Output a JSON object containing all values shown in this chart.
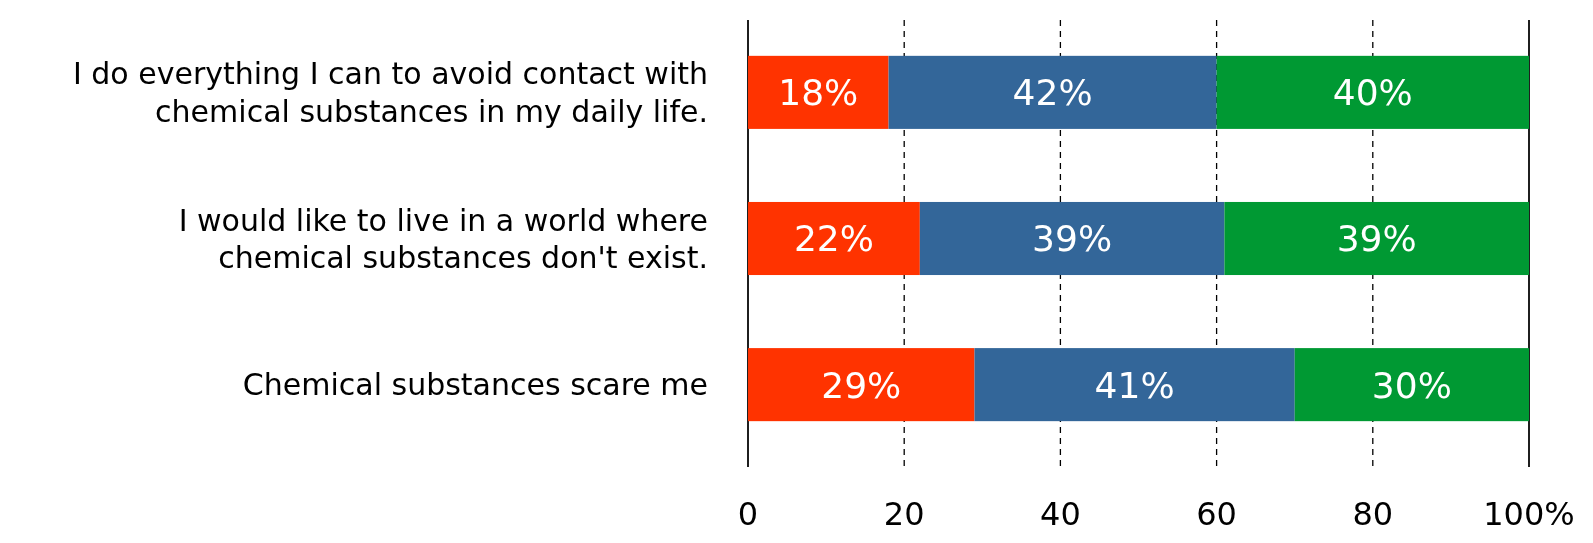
{
  "chart_data": {
    "type": "bar",
    "orientation": "horizontal",
    "stacked": true,
    "categories": [
      "I do everything I can to avoid contact with chemical substances in my daily life.",
      "I would like to live in a world where chemical substances don't exist.",
      "Chemical substances scare me"
    ],
    "series": [
      {
        "color": "#ff3300",
        "values": [
          18,
          22,
          29
        ],
        "value_labels": [
          "18%",
          "22%",
          "29%"
        ]
      },
      {
        "color": "#336699",
        "values": [
          42,
          39,
          41
        ],
        "value_labels": [
          "42%",
          "39%",
          "41%"
        ]
      },
      {
        "color": "#009933",
        "values": [
          40,
          39,
          30
        ],
        "value_labels": [
          "40%",
          "39%",
          "30%"
        ]
      }
    ],
    "xlim": [
      0,
      100
    ],
    "xticks": [
      0,
      20,
      40,
      60,
      80,
      {
        "value": 100,
        "label": "100%"
      }
    ],
    "grid": "x",
    "line_style": "dashed"
  }
}
